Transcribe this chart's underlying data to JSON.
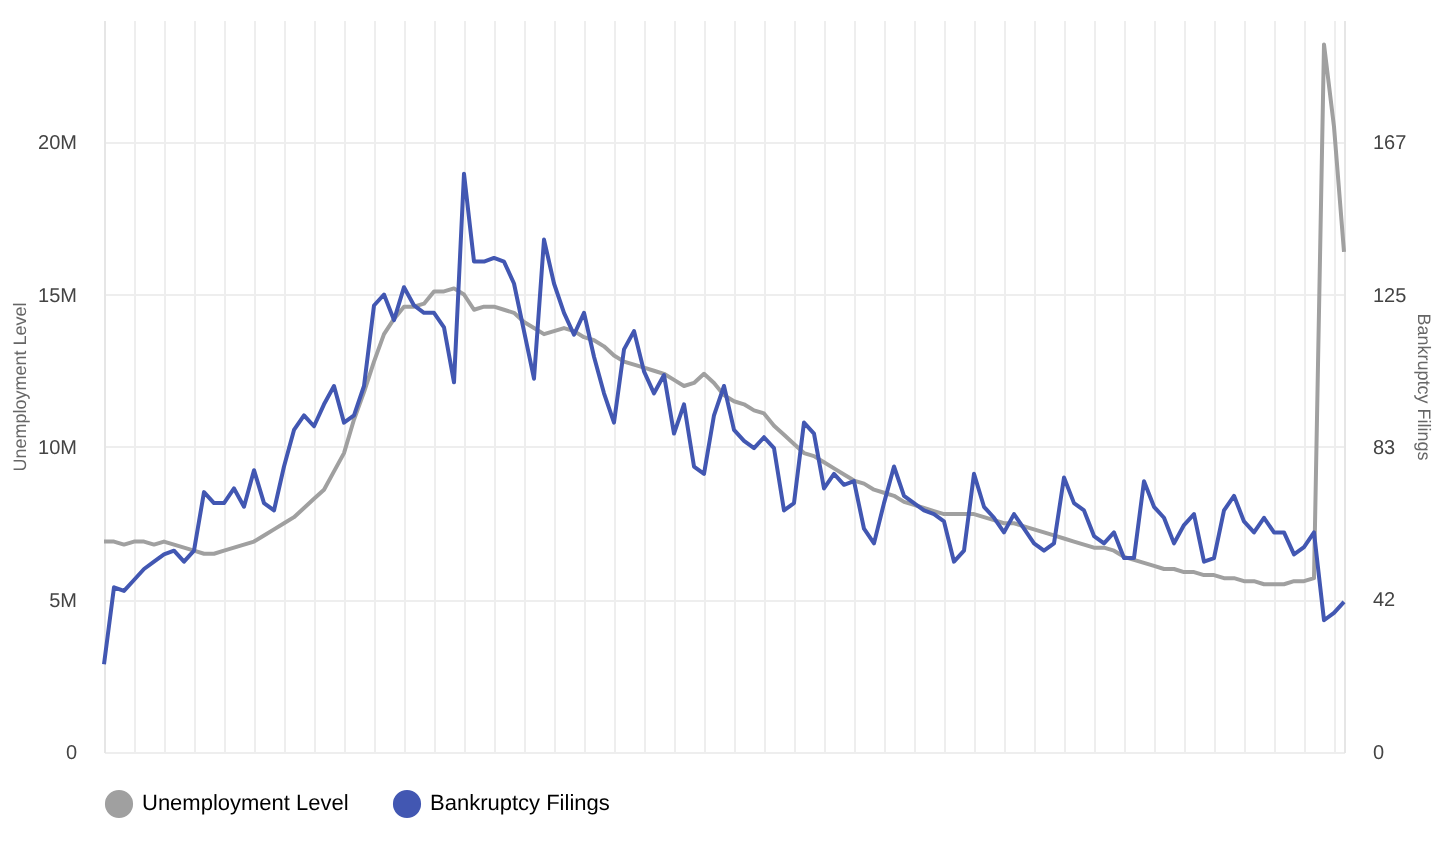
{
  "chart_data": {
    "type": "line",
    "ylabel": "Unemployment Level",
    "y2label": "Bankruptcy Filings",
    "categories": [
      null,
      null,
      null,
      null,
      null,
      null,
      null,
      null,
      null,
      null,
      null,
      null,
      null,
      null,
      null,
      null,
      null,
      null,
      null,
      null,
      null,
      null,
      null,
      null,
      null,
      null,
      null,
      null,
      null,
      null,
      null,
      null,
      null,
      null,
      null,
      null,
      null,
      null,
      null,
      null,
      null,
      null,
      null,
      null,
      null,
      null,
      null,
      null,
      null,
      null,
      null,
      null,
      null,
      null,
      null,
      null,
      null,
      null,
      null,
      null,
      null,
      null,
      null,
      null,
      null,
      null,
      null,
      null,
      null,
      null,
      null,
      null,
      null,
      null,
      null,
      null,
      null,
      null,
      null,
      null,
      null,
      null,
      null,
      null,
      null,
      null,
      null,
      null,
      null,
      null,
      null,
      null,
      null,
      null,
      null,
      null,
      null,
      null,
      null,
      null,
      null,
      null,
      null,
      null,
      null,
      null,
      null,
      null,
      null,
      null,
      null,
      null,
      null,
      null,
      null,
      null,
      null,
      null,
      null,
      null,
      null,
      null,
      null,
      null,
      null
    ],
    "series": [
      {
        "name": "Unemployment Level",
        "color": "#a0a0a0",
        "values": [
          6900000,
          6900000,
          6800000,
          6900000,
          6900000,
          6800000,
          6900000,
          6800000,
          6700000,
          6600000,
          6500000,
          6500000,
          6600000,
          6700000,
          6800000,
          6900000,
          7100000,
          7300000,
          7500000,
          7700000,
          8000000,
          8300000,
          8600000,
          9200000,
          9800000,
          10900000,
          11800000,
          12800000,
          13700000,
          14200000,
          14600000,
          14600000,
          14700000,
          15100000,
          15100000,
          15200000,
          15000000,
          14500000,
          14600000,
          14600000,
          14500000,
          14400000,
          14100000,
          13900000,
          13700000,
          13800000,
          13900000,
          13800000,
          13600000,
          13500000,
          13300000,
          13000000,
          12800000,
          12700000,
          12600000,
          12500000,
          12400000,
          12200000,
          12000000,
          12100000,
          12400000,
          12100000,
          11700000,
          11500000,
          11400000,
          11200000,
          11100000,
          10700000,
          10400000,
          10100000,
          9800000,
          9700000,
          9500000,
          9300000,
          9100000,
          8900000,
          8800000,
          8600000,
          8500000,
          8400000,
          8200000,
          8100000,
          8000000,
          7900000,
          7800000,
          7800000,
          7800000,
          7800000,
          7700000,
          7600000,
          7500000,
          7500000,
          7400000,
          7300000,
          7200000,
          7100000,
          7000000,
          6900000,
          6800000,
          6700000,
          6700000,
          6600000,
          6400000,
          6300000,
          6200000,
          6100000,
          6000000,
          6000000,
          5900000,
          5900000,
          5800000,
          5800000,
          5700000,
          5700000,
          5600000,
          5600000,
          5500000,
          5500000,
          5500000,
          5600000,
          5600000,
          5700000,
          23200000,
          20500000,
          16400000
        ]
      },
      {
        "name": "Bankruptcy Filings",
        "color": "#4257b2",
        "axis": "y2",
        "values": [
          24,
          45,
          44,
          47,
          50,
          52,
          54,
          55,
          52,
          55,
          71,
          68,
          68,
          72,
          67,
          77,
          68,
          66,
          78,
          88,
          92,
          89,
          95,
          100,
          90,
          92,
          100,
          122,
          125,
          118,
          127,
          122,
          120,
          120,
          116,
          101,
          158,
          134,
          134,
          135,
          134,
          128,
          115,
          102,
          140,
          128,
          120,
          114,
          120,
          108,
          98,
          90,
          110,
          115,
          104,
          98,
          103,
          87,
          95,
          78,
          76,
          92,
          100,
          88,
          85,
          83,
          86,
          83,
          66,
          68,
          90,
          87,
          72,
          76,
          73,
          74,
          61,
          57,
          68,
          78,
          70,
          68,
          66,
          65,
          63,
          52,
          55,
          76,
          67,
          64,
          60,
          65,
          61,
          57,
          55,
          57,
          75,
          68,
          66,
          59,
          57,
          60,
          53,
          53,
          74,
          67,
          64,
          57,
          62,
          65,
          52,
          53,
          66,
          70,
          63,
          60,
          64,
          60,
          60,
          54,
          56,
          60,
          36,
          38,
          41
        ]
      }
    ],
    "ylim": [
      0,
      24000000
    ],
    "yticks": [
      0,
      {
        "value": 5000000,
        "label": "5M"
      },
      {
        "value": 10000000,
        "label": "10M"
      },
      {
        "value": 15000000,
        "label": "15M"
      },
      {
        "value": 20000000,
        "label": "20M"
      }
    ],
    "y2lim": [
      0,
      200
    ],
    "y2ticks": [
      0,
      {
        "value": 41.67,
        "label": "42"
      },
      {
        "value": 83.33,
        "label": "83"
      },
      125,
      {
        "value": 166.67,
        "label": "167"
      }
    ],
    "grid": true,
    "legend": "bottom",
    "marker": "none",
    "line_style": "solid"
  }
}
